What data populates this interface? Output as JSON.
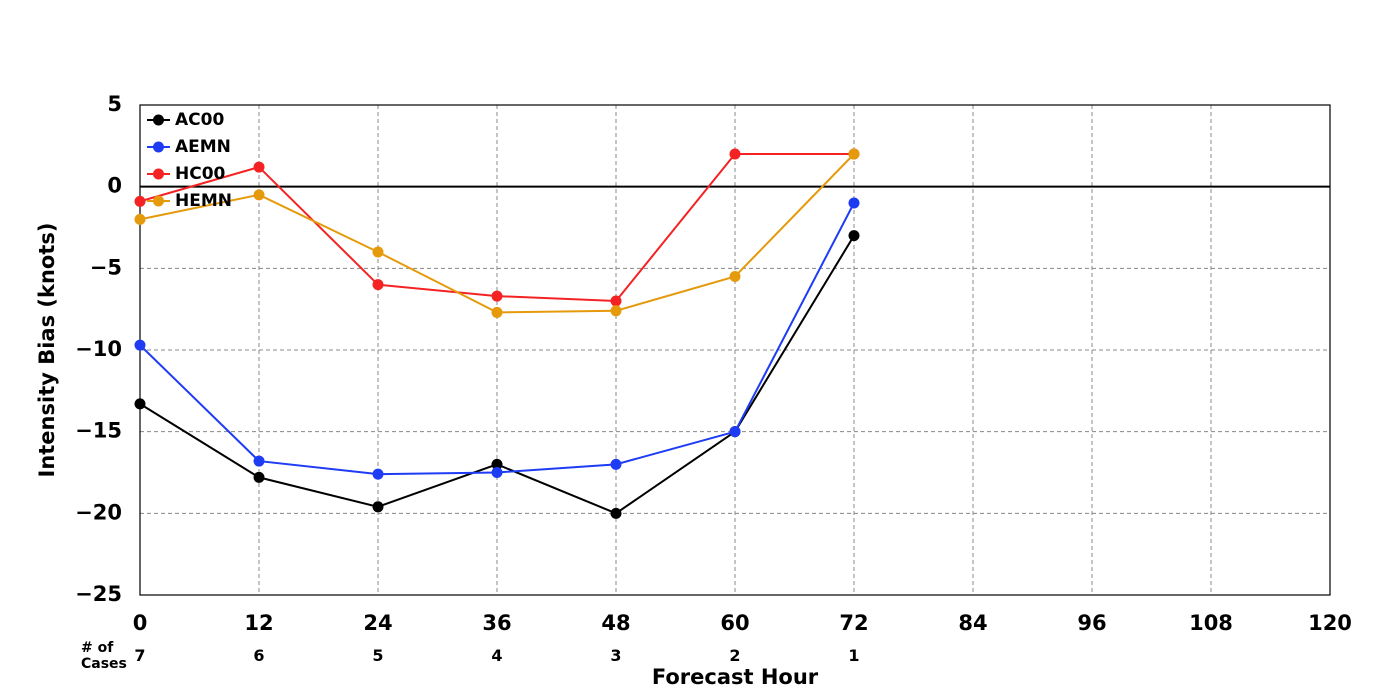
{
  "chart_data": {
    "type": "line",
    "title": "",
    "xlabel": "Forecast Hour",
    "ylabel": "Intensity Bias (knots)",
    "xlim": [
      0,
      120
    ],
    "ylim": [
      -25,
      5
    ],
    "x_ticks": [
      0,
      12,
      24,
      36,
      48,
      60,
      72,
      84,
      96,
      108,
      120
    ],
    "x_tick_labels": [
      "0",
      "12",
      "24",
      "36",
      "48",
      "60",
      "72",
      "84",
      "96",
      "108",
      "120"
    ],
    "y_ticks": [
      5,
      0,
      -5,
      -10,
      -15,
      -20,
      -25
    ],
    "y_tick_labels": [
      "5",
      "0",
      "−5",
      "−10",
      "−15",
      "−20",
      "−25"
    ],
    "grid": true,
    "zero_line": true,
    "legend_position": "top-left",
    "x": [
      0,
      12,
      24,
      36,
      48,
      60,
      72
    ],
    "series": [
      {
        "name": "AC00",
        "color": "#000000",
        "values": [
          -13.3,
          -17.8,
          -19.6,
          -17.0,
          -20.0,
          -15.0,
          -3.0
        ]
      },
      {
        "name": "AEMN",
        "color": "#1f3cf5",
        "values": [
          -9.7,
          -16.8,
          -17.6,
          -17.5,
          -17.0,
          -15.0,
          -1.0
        ]
      },
      {
        "name": "HC00",
        "color": "#f42222",
        "values": [
          -0.9,
          1.2,
          -6.0,
          -6.7,
          -7.0,
          2.0,
          2.0
        ]
      },
      {
        "name": "HEMN",
        "color": "#e59a0c",
        "values": [
          -2.0,
          -0.5,
          -4.0,
          -7.7,
          -7.6,
          -5.5,
          2.0
        ]
      }
    ],
    "cases": {
      "label_line1": "# of",
      "label_line2": "Cases",
      "x": [
        0,
        12,
        24,
        36,
        48,
        60,
        72
      ],
      "labels": [
        "7",
        "6",
        "5",
        "4",
        "3",
        "2",
        "1"
      ]
    }
  }
}
